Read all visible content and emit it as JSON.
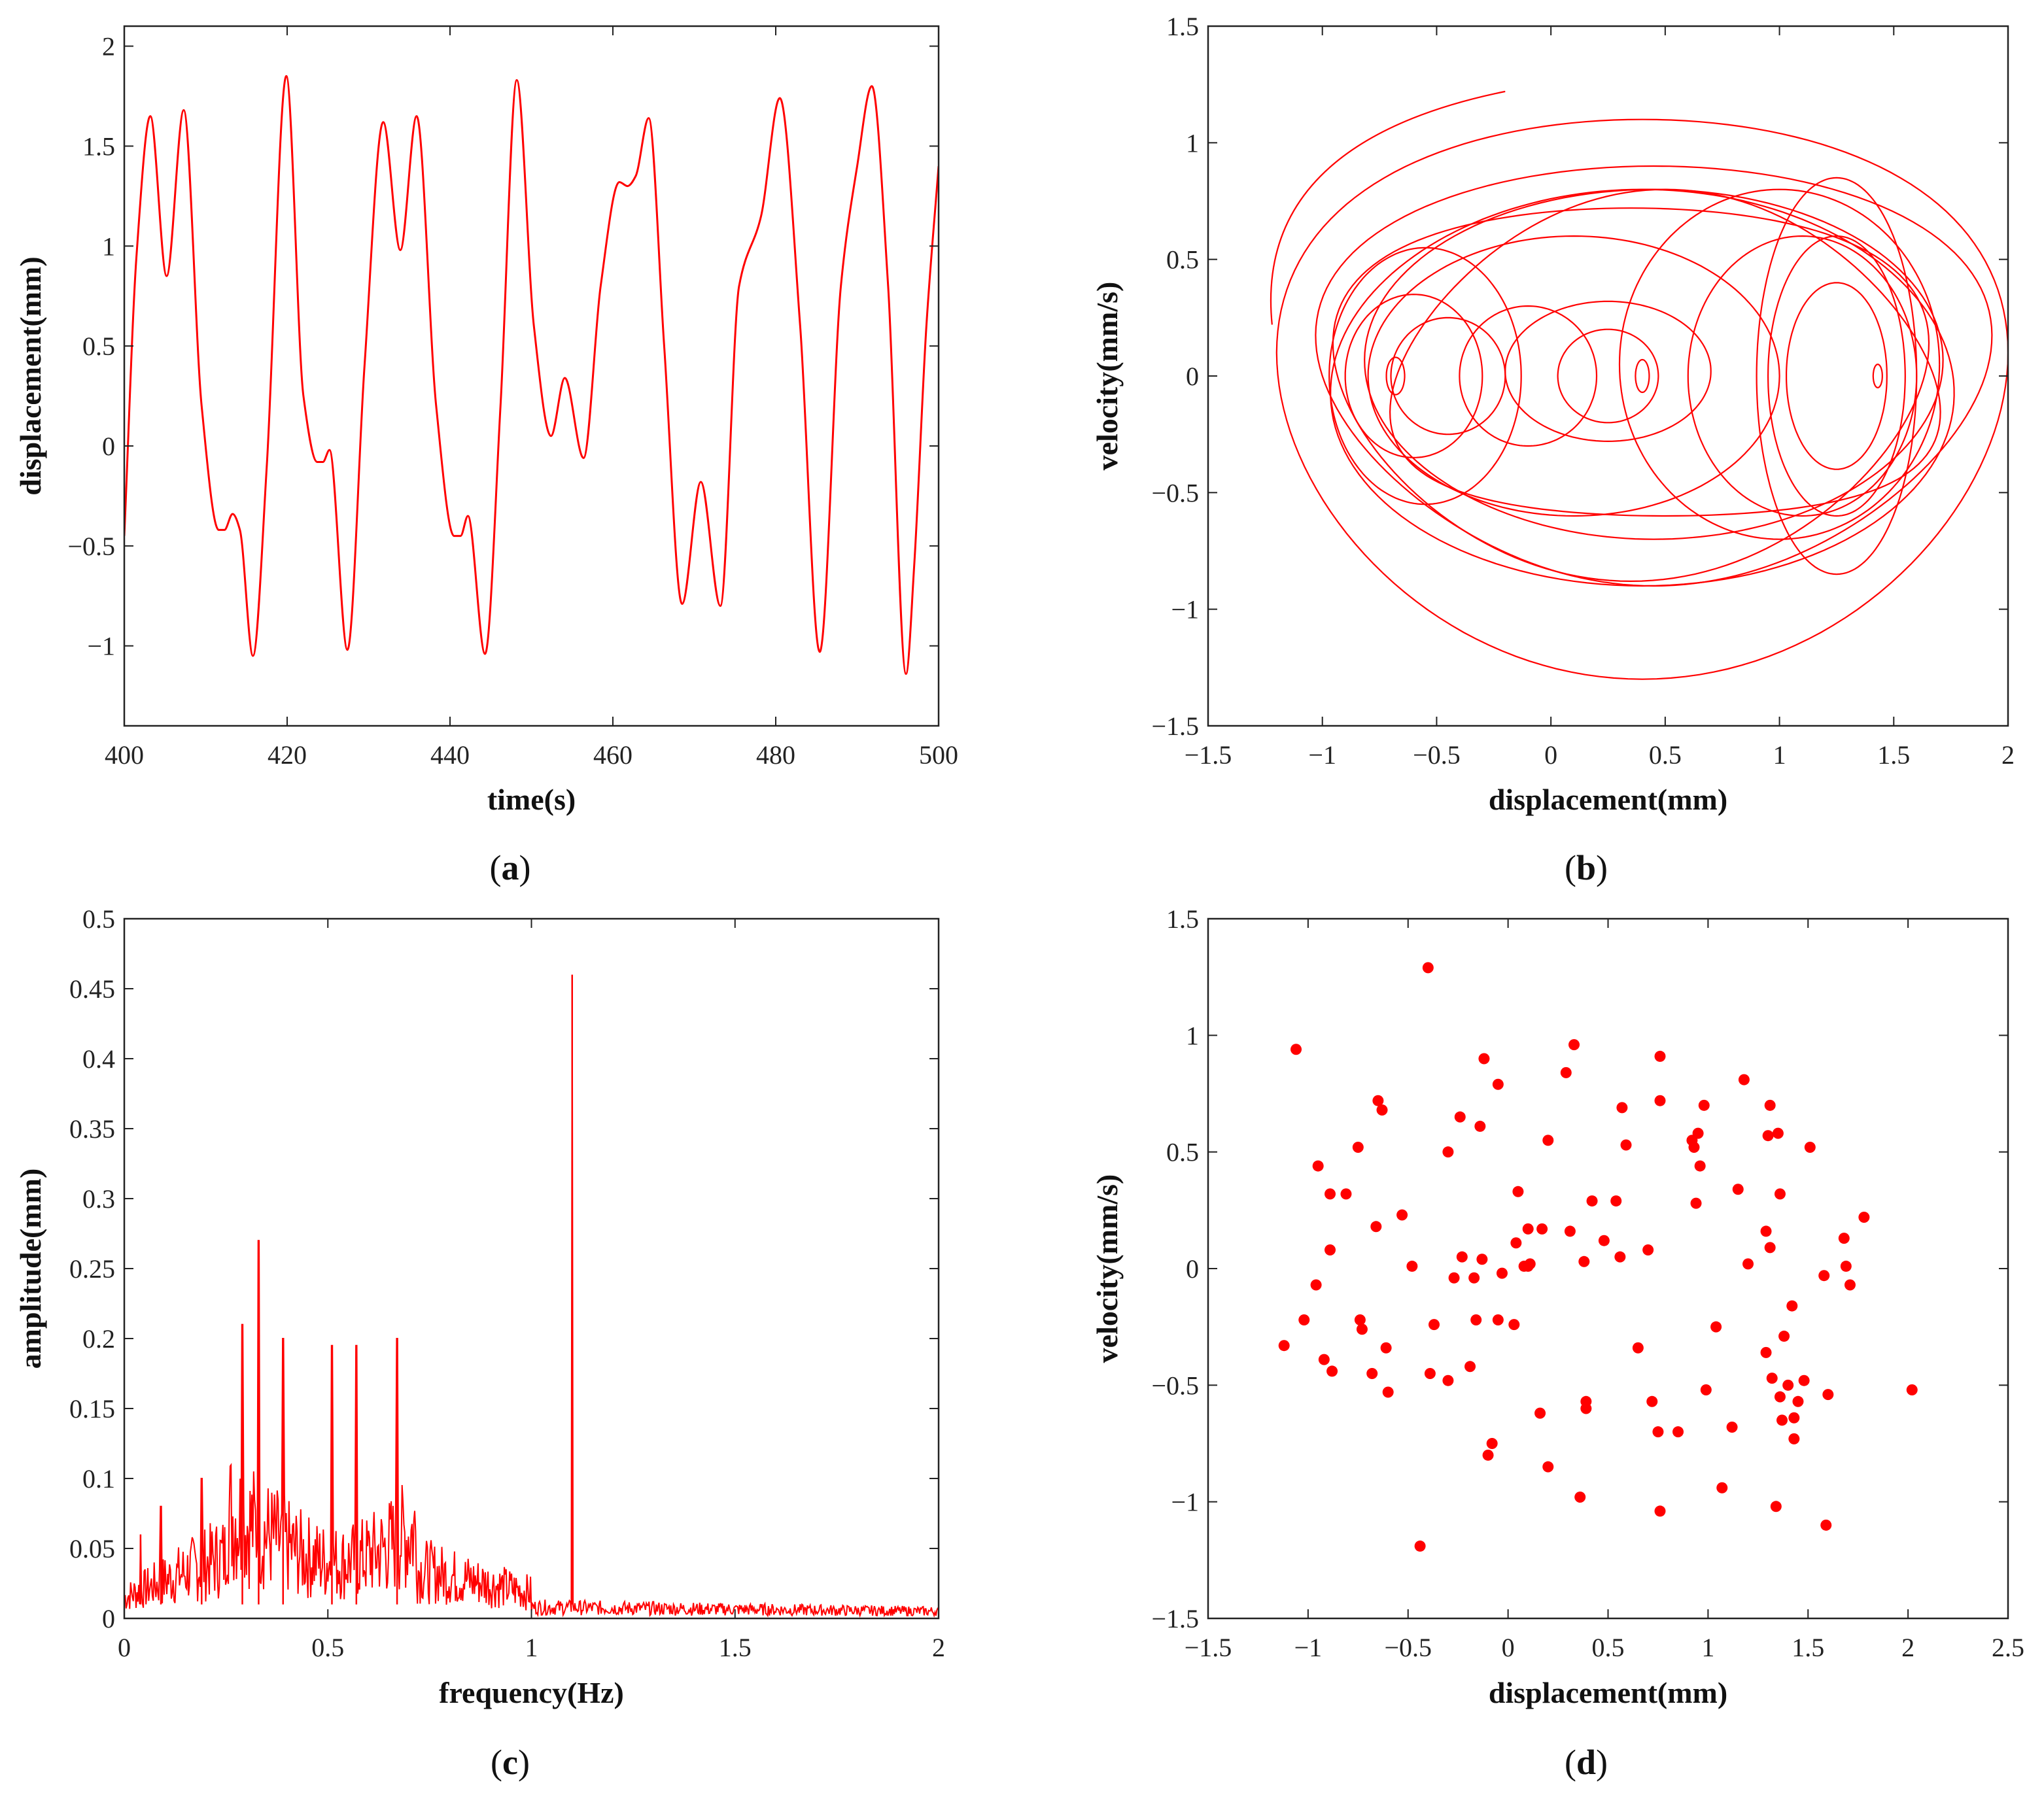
{
  "chart_data": [
    {
      "id": "a",
      "panel_label": "a",
      "type": "line",
      "xlabel": "time(s)",
      "ylabel": "displacement(mm)",
      "xlim": [
        400,
        500
      ],
      "ylim": [
        -1.4,
        2.1
      ],
      "xticks": [
        400,
        420,
        440,
        460,
        480,
        500
      ],
      "yticks": [
        -1,
        -0.5,
        0,
        0.5,
        1,
        1.5,
        2
      ],
      "line_color": "#ff0000",
      "x": [
        400,
        401.5,
        403.2,
        405.2,
        407.3,
        409.5,
        411.6,
        412.3,
        413.3,
        414.2,
        415.8,
        417.5,
        419.9,
        422.0,
        423.7,
        424.4,
        425.2,
        427.4,
        429.5,
        431.8,
        433.9,
        435.9,
        438.3,
        440.5,
        441.3,
        442.2,
        444.3,
        446.2,
        448.2,
        450.3,
        452.4,
        454.1,
        456.4,
        458.5,
        460.8,
        461.8,
        462.8,
        464.4,
        466.3,
        468.5,
        470.8,
        473.2,
        475.5,
        478.2,
        480.5,
        483.0,
        485.4,
        488.0,
        490.0,
        491.8,
        493.8,
        496.0,
        497.0,
        498.5,
        500
      ],
      "y": [
        -0.45,
        0.95,
        1.65,
        0.85,
        1.68,
        0.2,
        -0.42,
        -0.42,
        -0.34,
        -0.42,
        -1.05,
        -0.1,
        1.85,
        0.25,
        -0.08,
        -0.08,
        -0.02,
        -1.02,
        0.4,
        1.62,
        0.98,
        1.65,
        0.2,
        -0.45,
        -0.45,
        -0.35,
        -1.04,
        0.2,
        1.83,
        0.6,
        0.05,
        0.34,
        -0.06,
        0.8,
        1.32,
        1.3,
        1.35,
        1.64,
        0.5,
        -0.79,
        -0.18,
        -0.8,
        0.8,
        1.15,
        1.74,
        0.6,
        -1.03,
        0.8,
        1.4,
        1.8,
        0.8,
        -1.14,
        -0.6,
        0.6,
        1.4
      ]
    },
    {
      "id": "b",
      "panel_label": "b",
      "type": "line",
      "xlabel": "displacement(mm)",
      "ylabel": "velocity(mm/s)",
      "xlim": [
        -1.5,
        2
      ],
      "ylim": [
        -1.5,
        1.5
      ],
      "xticks": [
        -1.5,
        -1,
        -0.5,
        0,
        0.5,
        1,
        1.5,
        2
      ],
      "yticks": [
        -1.5,
        -1,
        -0.5,
        0,
        0.5,
        1,
        1.5
      ],
      "line_color": "#ff0000",
      "orbits": [
        {
          "cx": 0.4,
          "cy": 0.0,
          "rx": 1.6,
          "ry": 1.2,
          "dx": 0.0,
          "dy": 0.1
        },
        {
          "cx": 0.45,
          "cy": 0.0,
          "rx": 1.45,
          "ry": 0.9,
          "dx": 0.15,
          "dy": 0.0
        },
        {
          "cx": 0.4,
          "cy": 0.0,
          "rx": 1.35,
          "ry": 0.85,
          "dx": -0.1,
          "dy": 0.05
        },
        {
          "cx": 0.45,
          "cy": 0.0,
          "rx": 1.25,
          "ry": 0.75,
          "dx": 0.1,
          "dy": -0.05
        },
        {
          "cx": 0.35,
          "cy": 0.0,
          "rx": 1.3,
          "ry": 0.8,
          "dx": 0.05,
          "dy": 0.08
        },
        {
          "cx": 0.5,
          "cy": 0.0,
          "rx": 1.2,
          "ry": 0.7,
          "dx": -0.05,
          "dy": -0.1
        },
        {
          "cx": 0.1,
          "cy": 0.0,
          "rx": 0.9,
          "ry": 0.6,
          "dx": 0.0,
          "dy": 0.0
        },
        {
          "cx": 1.25,
          "cy": 0.0,
          "rx": 0.35,
          "ry": 0.85,
          "dx": 0.0,
          "dy": 0.0
        },
        {
          "cx": 1.25,
          "cy": 0.0,
          "rx": 0.3,
          "ry": 0.6,
          "dx": 0.0,
          "dy": 0.0
        },
        {
          "cx": 1.25,
          "cy": 0.0,
          "rx": 0.22,
          "ry": 0.4,
          "dx": 0.0,
          "dy": 0.0
        },
        {
          "cx": 1.1,
          "cy": 0.0,
          "rx": 0.5,
          "ry": 0.6,
          "dx": 0.0,
          "dy": 0.0
        },
        {
          "cx": 1.0,
          "cy": 0.05,
          "rx": 0.7,
          "ry": 0.75,
          "dx": 0.0,
          "dy": 0.0
        },
        {
          "cx": -0.55,
          "cy": 0.0,
          "rx": 0.42,
          "ry": 0.55,
          "dx": 0.0,
          "dy": 0.0
        },
        {
          "cx": -0.6,
          "cy": 0.0,
          "rx": 0.3,
          "ry": 0.35,
          "dx": 0.0,
          "dy": 0.0
        },
        {
          "cx": -0.45,
          "cy": 0.0,
          "rx": 0.25,
          "ry": 0.25,
          "dx": 0.0,
          "dy": 0.0
        },
        {
          "cx": -0.1,
          "cy": 0.0,
          "rx": 0.3,
          "ry": 0.3,
          "dx": 0.0,
          "dy": 0.0
        },
        {
          "cx": 0.25,
          "cy": 0.0,
          "rx": 0.22,
          "ry": 0.2,
          "dx": 0.0,
          "dy": 0.0
        },
        {
          "cx": 0.25,
          "cy": 0.02,
          "rx": 0.45,
          "ry": 0.3,
          "dx": 0.0,
          "dy": 0.0
        },
        {
          "cx": -0.68,
          "cy": 0.0,
          "rx": 0.04,
          "ry": 0.08,
          "dx": 0.0,
          "dy": 0.0
        },
        {
          "cx": 0.4,
          "cy": 0.0,
          "rx": 0.03,
          "ry": 0.07,
          "dx": 0.0,
          "dy": 0.0
        },
        {
          "cx": 1.43,
          "cy": 0.0,
          "rx": 0.02,
          "ry": 0.05,
          "dx": 0.0,
          "dy": 0.0
        }
      ]
    },
    {
      "id": "c",
      "panel_label": "c",
      "type": "line",
      "xlabel": "frequency(Hz)",
      "ylabel": "amplitude(mm)",
      "xlim": [
        0,
        2
      ],
      "ylim": [
        0,
        0.5
      ],
      "xticks": [
        0,
        0.5,
        1,
        1.5,
        2
      ],
      "yticks": [
        0,
        0.05,
        0.1,
        0.15,
        0.2,
        0.25,
        0.3,
        0.35,
        0.4,
        0.45,
        0.5
      ],
      "line_color": "#ff0000",
      "peaks": [
        {
          "x": 1.1,
          "y": 0.46
        },
        {
          "x": 0.33,
          "y": 0.27
        },
        {
          "x": 0.29,
          "y": 0.21
        },
        {
          "x": 0.39,
          "y": 0.2
        },
        {
          "x": 0.51,
          "y": 0.195
        },
        {
          "x": 0.57,
          "y": 0.195
        },
        {
          "x": 0.67,
          "y": 0.2
        },
        {
          "x": 0.19,
          "y": 0.1
        },
        {
          "x": 0.09,
          "y": 0.08
        },
        {
          "x": 0.04,
          "y": 0.06
        }
      ]
    },
    {
      "id": "d",
      "panel_label": "d",
      "type": "scatter",
      "xlabel": "displacement(mm)",
      "ylabel": "velocity(mm/s)",
      "xlim": [
        -1.5,
        2.5
      ],
      "ylim": [
        -1.5,
        1.5
      ],
      "xticks": [
        -1.5,
        -1,
        -0.5,
        0,
        0.5,
        1,
        1.5,
        2,
        2.5
      ],
      "yticks": [
        -1.5,
        -1,
        -0.5,
        0,
        0.5,
        1,
        1.5
      ],
      "marker_color": "#ff0000",
      "points": [
        [
          -1.12,
          -0.33
        ],
        [
          -1.06,
          0.94
        ],
        [
          -1.02,
          -0.22
        ],
        [
          -0.96,
          -0.07
        ],
        [
          -0.95,
          0.44
        ],
        [
          -0.92,
          -0.39
        ],
        [
          -0.89,
          0.32
        ],
        [
          -0.89,
          0.08
        ],
        [
          -0.88,
          -0.44
        ],
        [
          -0.81,
          0.32
        ],
        [
          -0.75,
          0.52
        ],
        [
          -0.74,
          -0.22
        ],
        [
          -0.73,
          -0.26
        ],
        [
          -0.68,
          -0.45
        ],
        [
          -0.66,
          0.18
        ],
        [
          -0.65,
          0.72
        ],
        [
          -0.63,
          0.68
        ],
        [
          -0.61,
          -0.34
        ],
        [
          -0.6,
          -0.53
        ],
        [
          -0.53,
          0.23
        ],
        [
          -0.48,
          0.01
        ],
        [
          -0.44,
          -1.19
        ],
        [
          -0.4,
          1.29
        ],
        [
          -0.39,
          -0.45
        ],
        [
          -0.37,
          -0.24
        ],
        [
          -0.3,
          -0.48
        ],
        [
          -0.3,
          0.5
        ],
        [
          -0.27,
          -0.04
        ],
        [
          -0.24,
          0.65
        ],
        [
          -0.23,
          0.05
        ],
        [
          -0.19,
          -0.42
        ],
        [
          -0.17,
          -0.04
        ],
        [
          -0.16,
          -0.22
        ],
        [
          -0.14,
          0.61
        ],
        [
          -0.13,
          0.04
        ],
        [
          -0.12,
          0.9
        ],
        [
          -0.1,
          -0.8
        ],
        [
          -0.08,
          -0.75
        ],
        [
          -0.05,
          0.79
        ],
        [
          -0.05,
          -0.22
        ],
        [
          -0.03,
          -0.02
        ],
        [
          0.03,
          -0.24
        ],
        [
          0.04,
          0.11
        ],
        [
          0.05,
          0.33
        ],
        [
          0.08,
          0.01
        ],
        [
          0.1,
          0.17
        ],
        [
          0.1,
          0.01
        ],
        [
          0.11,
          0.02
        ],
        [
          0.16,
          -0.62
        ],
        [
          0.17,
          0.17
        ],
        [
          0.2,
          0.55
        ],
        [
          0.2,
          -0.85
        ],
        [
          0.29,
          0.84
        ],
        [
          0.31,
          0.16
        ],
        [
          0.33,
          0.96
        ],
        [
          0.36,
          -0.98
        ],
        [
          0.38,
          0.03
        ],
        [
          0.39,
          -0.57
        ],
        [
          0.39,
          -0.6
        ],
        [
          0.42,
          0.29
        ],
        [
          0.48,
          0.12
        ],
        [
          0.54,
          0.29
        ],
        [
          0.56,
          0.05
        ],
        [
          0.57,
          0.69
        ],
        [
          0.59,
          0.53
        ],
        [
          0.65,
          -0.34
        ],
        [
          0.7,
          0.08
        ],
        [
          0.72,
          -0.57
        ],
        [
          0.75,
          -0.7
        ],
        [
          0.76,
          0.91
        ],
        [
          0.76,
          0.72
        ],
        [
          0.76,
          -1.04
        ],
        [
          0.85,
          -0.7
        ],
        [
          0.92,
          0.55
        ],
        [
          0.93,
          0.52
        ],
        [
          0.94,
          0.28
        ],
        [
          0.95,
          0.58
        ],
        [
          0.96,
          0.44
        ],
        [
          0.98,
          0.7
        ],
        [
          0.99,
          -0.52
        ],
        [
          1.04,
          -0.25
        ],
        [
          1.07,
          -0.94
        ],
        [
          1.12,
          -0.68
        ],
        [
          1.15,
          0.34
        ],
        [
          1.18,
          0.81
        ],
        [
          1.2,
          0.02
        ],
        [
          1.29,
          0.16
        ],
        [
          1.29,
          -0.36
        ],
        [
          1.3,
          0.57
        ],
        [
          1.31,
          0.7
        ],
        [
          1.31,
          0.09
        ],
        [
          1.32,
          -0.47
        ],
        [
          1.34,
          -1.02
        ],
        [
          1.35,
          0.58
        ],
        [
          1.36,
          0.32
        ],
        [
          1.36,
          -0.55
        ],
        [
          1.37,
          -0.65
        ],
        [
          1.38,
          -0.29
        ],
        [
          1.4,
          -0.5
        ],
        [
          1.42,
          -0.16
        ],
        [
          1.43,
          -0.64
        ],
        [
          1.43,
          -0.73
        ],
        [
          1.45,
          -0.57
        ],
        [
          1.48,
          -0.48
        ],
        [
          1.51,
          0.52
        ],
        [
          1.58,
          -0.03
        ],
        [
          1.59,
          -1.1
        ],
        [
          1.6,
          -0.54
        ],
        [
          1.68,
          0.13
        ],
        [
          1.69,
          0.01
        ],
        [
          1.71,
          -0.07
        ],
        [
          1.78,
          0.22
        ],
        [
          2.02,
          -0.52
        ]
      ]
    }
  ]
}
